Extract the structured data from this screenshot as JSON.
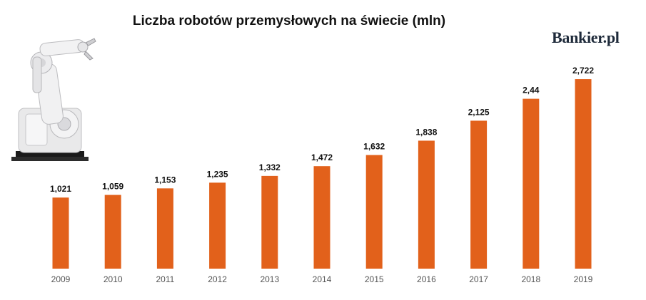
{
  "header": {
    "title": "Liczba robotów przemysłowych  na świecie (mln)",
    "logo": "Bankier.pl"
  },
  "colors": {
    "bar": "#e2611b",
    "text": "#111111",
    "tick": "#555555"
  },
  "chart_data": {
    "type": "bar",
    "title": "Liczba robotów przemysłowych  na świecie (mln)",
    "xlabel": "",
    "ylabel": "",
    "categories": [
      "2009",
      "2010",
      "2011",
      "2012",
      "2013",
      "2014",
      "2015",
      "2016",
      "2017",
      "2018",
      "2019"
    ],
    "values": [
      1.021,
      1.059,
      1.153,
      1.235,
      1.332,
      1.472,
      1.632,
      1.838,
      2.125,
      2.44,
      2.722
    ],
    "value_labels": [
      "1,021",
      "1,059",
      "1,153",
      "1,235",
      "1,332",
      "1,472",
      "1,632",
      "1,838",
      "2,125",
      "2,44",
      "2,722"
    ],
    "grid": false,
    "legend": "none"
  }
}
